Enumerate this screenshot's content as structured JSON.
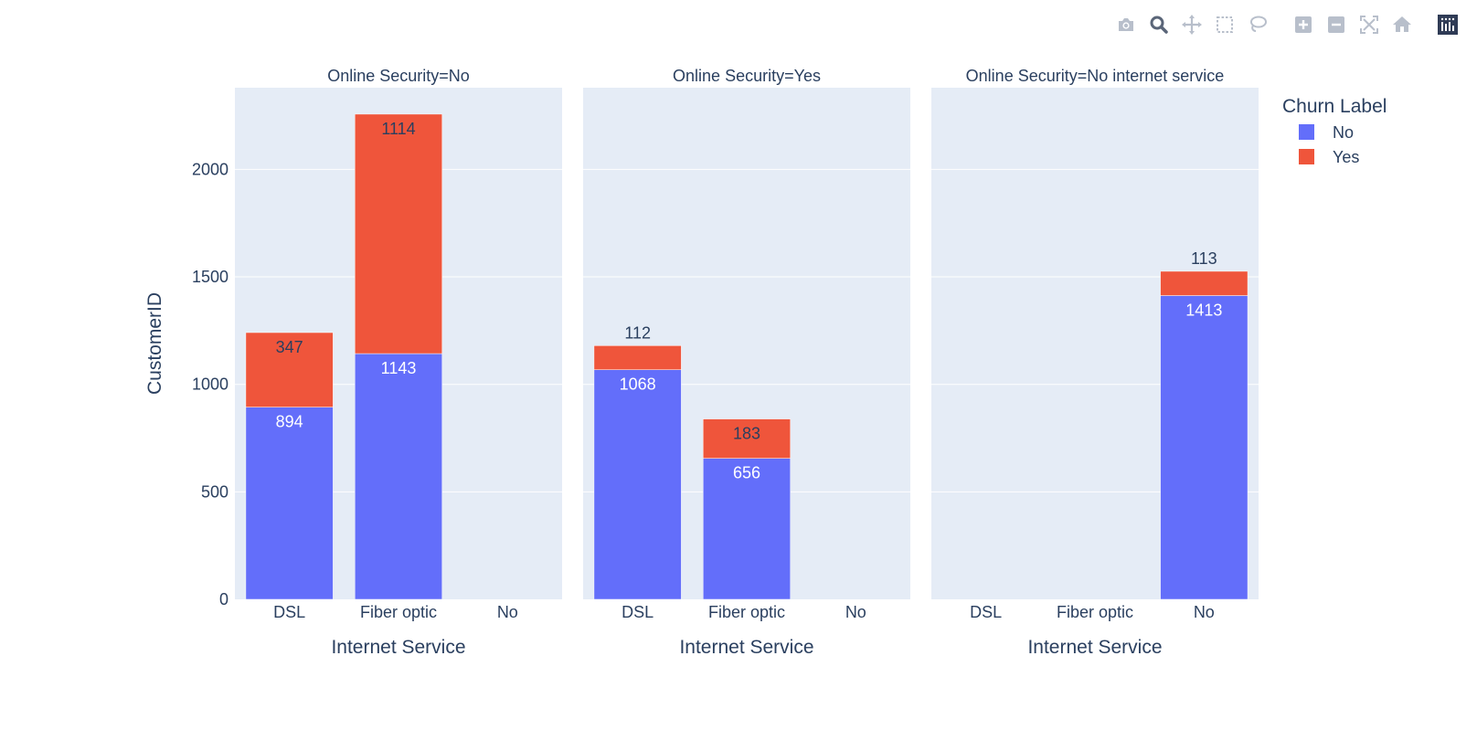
{
  "toolbar": {
    "icons": [
      "camera-icon",
      "zoom-icon",
      "pan-icon",
      "box-select-icon",
      "lasso-icon",
      "zoom-in-icon",
      "zoom-out-icon",
      "autoscale-icon",
      "home-icon",
      "plotly-logo-icon"
    ],
    "icon_color": "#b8bfcb",
    "active_color": "#5a6578",
    "logo_color": "#2f3b55"
  },
  "chart_data": {
    "type": "bar",
    "barmode": "stack",
    "facet_titles": [
      "Online Security=No",
      "Online Security=Yes",
      "Online Security=No internet service"
    ],
    "categories": [
      "DSL",
      "Fiber optic",
      "No"
    ],
    "xlabel": "Internet Service",
    "ylabel": "CustomerID",
    "ylim": [
      0,
      2380
    ],
    "yticks": [
      0,
      500,
      1000,
      1500,
      2000
    ],
    "grid": true,
    "legend": {
      "title": "Churn Label",
      "position": "top-right"
    },
    "series": [
      {
        "name": "No",
        "color": "#636efa",
        "label_color": "#ffffff",
        "values": [
          [
            894,
            1143,
            null
          ],
          [
            1068,
            656,
            null
          ],
          [
            null,
            null,
            1413
          ]
        ]
      },
      {
        "name": "Yes",
        "color": "#ef553b",
        "label_color": "#2a3f5f",
        "values": [
          [
            347,
            1114,
            null
          ],
          [
            112,
            183,
            null
          ],
          [
            null,
            null,
            113
          ]
        ]
      }
    ],
    "plot_bgcolor": "#e5ecf6"
  }
}
